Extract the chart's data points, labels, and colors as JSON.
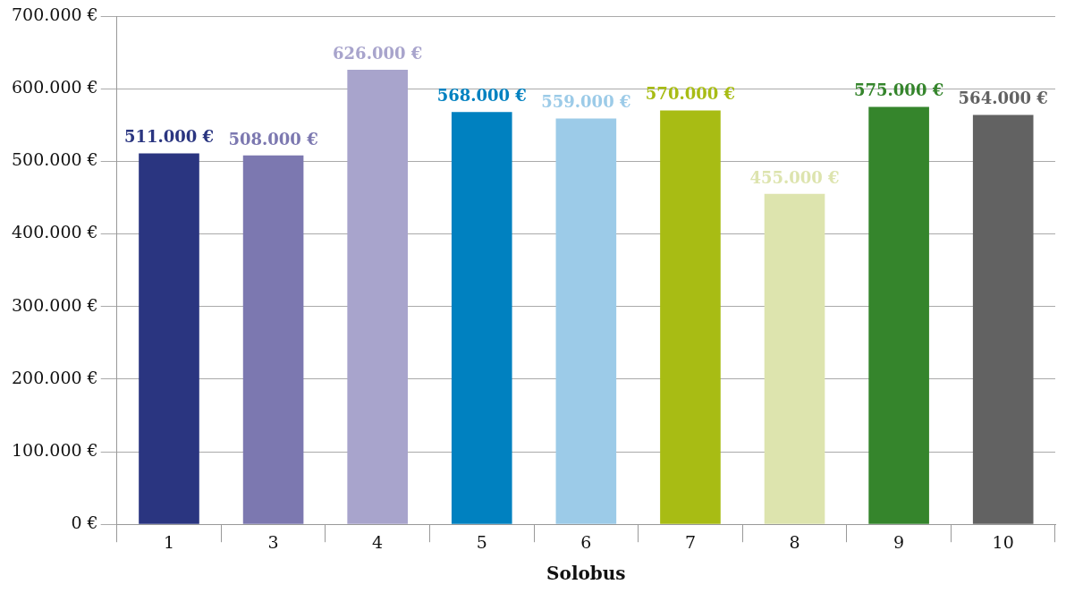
{
  "chart_data": {
    "type": "bar",
    "xlabel": "Solobus",
    "categories": [
      "1",
      "3",
      "4",
      "5",
      "6",
      "7",
      "8",
      "9",
      "10"
    ],
    "values": [
      511000,
      508000,
      626000,
      568000,
      559000,
      570000,
      455000,
      575000,
      564000
    ],
    "colors": [
      "#2a3580",
      "#7c78b0",
      "#a8a4cc",
      "#0081c0",
      "#9ccbe8",
      "#a8bc14",
      "#dde4ae",
      "#35852c",
      "#626262"
    ],
    "value_labels": [
      "511.000 €",
      "508.000 €",
      "626.000 €",
      "568.000 €",
      "559.000 €",
      "570.000 €",
      "455.000 €",
      "575.000 €",
      "564.000 €"
    ],
    "ylim": [
      0,
      700000
    ],
    "yticks": [
      {
        "value": 0,
        "label": "0 €"
      },
      {
        "value": 100000,
        "label": "100.000 €"
      },
      {
        "value": 200000,
        "label": "200.000 €"
      },
      {
        "value": 300000,
        "label": "300.000 €"
      },
      {
        "value": 400000,
        "label": "400.000 €"
      },
      {
        "value": 500000,
        "label": "500.000 €"
      },
      {
        "value": 600000,
        "label": "600.000 €"
      },
      {
        "value": 700000,
        "label": "700.000 €"
      }
    ],
    "grid": "y",
    "legend": false
  }
}
